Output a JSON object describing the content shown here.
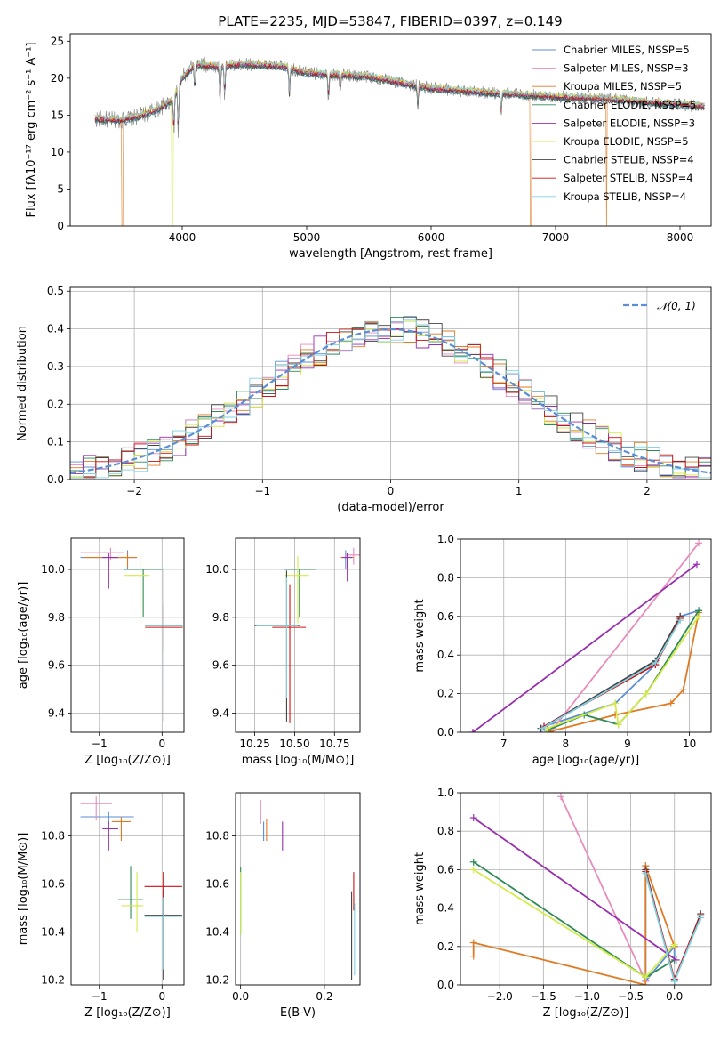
{
  "title": "PLATE=2235, MJD=53847, FIBERID=0397, z=0.149",
  "colors": {
    "Chabrier MILES": "#5b8ed6",
    "Salpeter MILES": "#e88bbd",
    "Kroupa MILES": "#e07b24",
    "Chabrier ELODIE": "#2e8b57",
    "Salpeter ELODIE": "#9a2fb0",
    "Kroupa ELODIE": "#d4ea4a",
    "Chabrier STELIB": "#444444",
    "Salpeter STELIB": "#cc1111",
    "Kroupa STELIB": "#7fd1e0",
    "spectrum": "#808080",
    "normal": "#5b8ed6"
  },
  "chart_data": [
    {
      "id": "spectrum",
      "type": "line",
      "xlabel": "wavelength [Angstrom, rest frame]",
      "ylabel": "Flux [fλ10⁻¹⁷ erg cm⁻² s⁻¹ A⁻¹]",
      "xlim": [
        3100,
        8250
      ],
      "ylim": [
        0,
        26
      ],
      "xticks": [
        "4000",
        "5000",
        "6000",
        "7000",
        "8000"
      ],
      "yticks": [
        "0",
        "5",
        "10",
        "15",
        "20",
        "25"
      ],
      "grid": false,
      "legend_position": "upper-right",
      "legend": [
        "Chabrier MILES, NSSP=5",
        "Salpeter MILES, NSSP=3",
        "Kroupa MILES, NSSP=5",
        "Chabrier ELODIE, NSSP=5",
        "Salpeter ELODIE, NSSP=3",
        "Kroupa ELODIE, NSSP=5",
        "Chabrier STELIB, NSSP=4",
        "Salpeter STELIB, NSSP=4",
        "Kroupa STELIB, NSSP=4"
      ],
      "continuum": [
        [
          3300,
          14.5
        ],
        [
          3500,
          14.3
        ],
        [
          3650,
          14.8
        ],
        [
          3800,
          15.8
        ],
        [
          3920,
          17.0
        ],
        [
          4000,
          20.0
        ],
        [
          4100,
          21.8
        ],
        [
          4300,
          21.6
        ],
        [
          4500,
          21.9
        ],
        [
          4800,
          21.6
        ],
        [
          5000,
          20.7
        ],
        [
          5500,
          20.2
        ],
        [
          6000,
          18.6
        ],
        [
          6500,
          18.0
        ],
        [
          7000,
          17.5
        ],
        [
          7500,
          17.1
        ],
        [
          8000,
          16.4
        ],
        [
          8200,
          16.2
        ]
      ],
      "absorption_lines": [
        [
          3933,
          4.5
        ],
        [
          3968,
          5.5
        ],
        [
          4101,
          3.0
        ],
        [
          4304,
          4.5
        ],
        [
          4341,
          3.5
        ],
        [
          4861,
          3.5
        ],
        [
          5175,
          3.0
        ],
        [
          5270,
          2.0
        ],
        [
          5893,
          2.5
        ],
        [
          6563,
          2.5
        ]
      ],
      "model_dropouts": [
        [
          3520,
          "Kroupa MILES"
        ],
        [
          3920,
          "Kroupa ELODIE"
        ],
        [
          6800,
          "Kroupa MILES"
        ],
        [
          7410,
          "Kroupa MILES"
        ]
      ]
    },
    {
      "id": "residual_hist",
      "type": "step",
      "xlabel": "(data-model)/error",
      "ylabel": "Normed distribution",
      "xlim": [
        -2.5,
        2.5
      ],
      "ylim": [
        0,
        0.51
      ],
      "xticks": [
        "−2",
        "−1",
        "0",
        "1",
        "2"
      ],
      "yticks": [
        "0.0",
        "0.1",
        "0.2",
        "0.3",
        "0.4",
        "0.5"
      ],
      "grid": true,
      "legend_label": "𝒩(0, 1)",
      "bins": {
        "start": -2.5,
        "width": 0.1,
        "count": 50
      },
      "normal": {
        "mean": 0,
        "sigma": 1
      }
    },
    {
      "id": "age_vs_Z",
      "type": "errorbar",
      "xlabel": "Z [log₁₀(Z/Z⊙)]",
      "ylabel": "age  [log₁₀(age/yr)]",
      "xlim": [
        -1.45,
        0.35
      ],
      "ylim": [
        9.32,
        10.13
      ],
      "xticks": [
        "−1",
        "0"
      ],
      "yticks": [
        "9.4",
        "9.6",
        "9.8",
        "10.0"
      ],
      "grid": true,
      "points": [
        {
          "model": "Chabrier MILES",
          "x": -0.55,
          "xl": 0.75,
          "xh": 0.15,
          "y": 10.05,
          "yl": 0.05,
          "yh": 0.03
        },
        {
          "model": "Salpeter MILES",
          "x": -0.82,
          "xl": 0.48,
          "xh": 0.22,
          "y": 10.07,
          "yl": 0.03,
          "yh": 0.02
        },
        {
          "model": "Kroupa MILES",
          "x": -0.55,
          "xl": 0.7,
          "xh": 0.15,
          "y": 10.05,
          "yl": 0.04,
          "yh": 0.02
        },
        {
          "model": "Chabrier ELODIE",
          "x": -0.3,
          "xl": 0.3,
          "xh": 0.3,
          "y": 10.0,
          "yl": 0.2,
          "yh": 0.0
        },
        {
          "model": "Salpeter ELODIE",
          "x": -0.85,
          "xl": 0.1,
          "xh": 0.15,
          "y": 10.05,
          "yl": 0.13,
          "yh": 0.02
        },
        {
          "model": "Kroupa ELODIE",
          "x": -0.35,
          "xl": 0.25,
          "xh": 0.15,
          "y": 9.975,
          "yl": 0.2,
          "yh": 0.1
        },
        {
          "model": "Chabrier STELIB",
          "x": 0.03,
          "xl": 0.3,
          "xh": 0.3,
          "y": 9.765,
          "yl": 0.4,
          "yh": 0.24
        },
        {
          "model": "Salpeter STELIB",
          "x": 0.03,
          "xl": 0.3,
          "xh": 0.3,
          "y": 9.758,
          "yl": 0.1,
          "yh": 0.1
        },
        {
          "model": "Kroupa STELIB",
          "x": 0.03,
          "xl": 0.3,
          "xh": 0.3,
          "y": 9.765,
          "yl": 0.3,
          "yh": 0.1
        }
      ]
    },
    {
      "id": "age_vs_mass",
      "type": "errorbar",
      "xlabel": "mass [log₁₀(M/M⊙)]",
      "ylabel": "",
      "xlim": [
        10.13,
        10.91
      ],
      "ylim": [
        9.32,
        10.13
      ],
      "xticks": [
        "10.25",
        "10.50",
        "10.75"
      ],
      "yticks": [
        "9.4",
        "9.6",
        "9.8",
        "10.0"
      ],
      "grid": true,
      "points": [
        {
          "model": "Chabrier MILES",
          "x": 10.82,
          "xl": 0.03,
          "xh": 0.04,
          "y": 10.05,
          "yl": 0.05,
          "yh": 0.03
        },
        {
          "model": "Salpeter MILES",
          "x": 10.87,
          "xl": 0.05,
          "xh": 0.04,
          "y": 10.06,
          "yl": 0.04,
          "yh": 0.03
        },
        {
          "model": "Kroupa MILES",
          "x": 10.83,
          "xl": 0.04,
          "xh": 0.04,
          "y": 10.05,
          "yl": 0.05,
          "yh": 0.02
        },
        {
          "model": "Chabrier ELODIE",
          "x": 10.53,
          "xl": 0.1,
          "xh": 0.1,
          "y": 10.0,
          "yl": 0.2,
          "yh": 0.0
        },
        {
          "model": "Salpeter ELODIE",
          "x": 10.83,
          "xl": 0.03,
          "xh": 0.03,
          "y": 10.05,
          "yl": 0.1,
          "yh": 0.02
        },
        {
          "model": "Kroupa ELODIE",
          "x": 10.52,
          "xl": 0.08,
          "xh": 0.07,
          "y": 9.975,
          "yl": 0.2,
          "yh": 0.08
        },
        {
          "model": "Chabrier STELIB",
          "x": 10.45,
          "xl": 0.2,
          "xh": 0.08,
          "y": 9.765,
          "yl": 0.4,
          "yh": 0.23
        },
        {
          "model": "Salpeter STELIB",
          "x": 10.47,
          "xl": 0.11,
          "xh": 0.1,
          "y": 9.758,
          "yl": 0.4,
          "yh": 0.18
        },
        {
          "model": "Kroupa STELIB",
          "x": 10.45,
          "xl": 0.19,
          "xh": 0.07,
          "y": 9.765,
          "yl": 0.3,
          "yh": 0.2
        }
      ]
    },
    {
      "id": "weight_vs_age",
      "type": "line",
      "xlabel": "age  [log₁₀(age/yr)]",
      "ylabel": "mass weight",
      "xlim": [
        6.3,
        10.35
      ],
      "ylim": [
        0,
        1
      ],
      "xticks": [
        "7",
        "8",
        "9",
        "10"
      ],
      "yticks": [
        "0.0",
        "0.2",
        "0.4",
        "0.6",
        "0.8",
        "1.0"
      ],
      "grid": true,
      "series": [
        {
          "model": "Chabrier MILES",
          "x": [
            7.65,
            8.8,
            9.45,
            9.85,
            10.15
          ],
          "y": [
            0.03,
            0.15,
            0.35,
            0.6,
            0.63
          ]
        },
        {
          "model": "Salpeter MILES",
          "x": [
            7.8,
            10.15
          ],
          "y": [
            0.02,
            0.98
          ]
        },
        {
          "model": "Kroupa MILES",
          "x": [
            7.7,
            8.8,
            9.7,
            9.9,
            10.15
          ],
          "y": [
            0.0,
            0.09,
            0.15,
            0.22,
            0.62
          ]
        },
        {
          "model": "Chabrier ELODIE",
          "x": [
            7.7,
            8.3,
            8.85,
            9.3,
            10.15
          ],
          "y": [
            0.01,
            0.09,
            0.04,
            0.2,
            0.63
          ]
        },
        {
          "model": "Salpeter ELODIE",
          "x": [
            6.5,
            10.12
          ],
          "y": [
            0.0,
            0.87
          ]
        },
        {
          "model": "Kroupa ELODIE",
          "x": [
            7.7,
            8.8,
            8.85,
            9.3,
            10.15
          ],
          "y": [
            0.02,
            0.15,
            0.04,
            0.2,
            0.6
          ]
        },
        {
          "model": "Chabrier STELIB",
          "x": [
            7.6,
            9.45,
            9.85
          ],
          "y": [
            0.02,
            0.37,
            0.6
          ]
        },
        {
          "model": "Salpeter STELIB",
          "x": [
            7.65,
            9.45,
            9.85
          ],
          "y": [
            0.03,
            0.35,
            0.59
          ]
        },
        {
          "model": "Kroupa STELIB",
          "x": [
            7.62,
            9.45,
            9.85
          ],
          "y": [
            0.02,
            0.36,
            0.58
          ]
        }
      ]
    },
    {
      "id": "mass_vs_Z",
      "type": "errorbar",
      "xlabel": "Z [log₁₀(Z/Z⊙)]",
      "ylabel": "mass [log₁₀(M/M⊙)]",
      "xlim": [
        -1.45,
        0.35
      ],
      "ylim": [
        10.18,
        10.98
      ],
      "xticks": [
        "−1",
        "0"
      ],
      "yticks": [
        "10.2",
        "10.4",
        "10.6",
        "10.8"
      ],
      "grid": true,
      "points": [
        {
          "model": "Chabrier MILES",
          "x": -0.85,
          "xl": 0.45,
          "xh": 0.4,
          "y": 10.88,
          "yl": 0.03,
          "yh": 0.02
        },
        {
          "model": "Salpeter MILES",
          "x": -1.05,
          "xl": 0.25,
          "xh": 0.25,
          "y": 10.935,
          "yl": 0.07,
          "yh": 0.03
        },
        {
          "model": "Kroupa MILES",
          "x": -0.65,
          "xl": 0.15,
          "xh": 0.15,
          "y": 10.86,
          "yl": 0.08,
          "yh": 0.02
        },
        {
          "model": "Chabrier ELODIE",
          "x": -0.5,
          "xl": 0.2,
          "xh": 0.2,
          "y": 10.535,
          "yl": 0.08,
          "yh": 0.14
        },
        {
          "model": "Salpeter ELODIE",
          "x": -0.85,
          "xl": 0.1,
          "xh": 0.15,
          "y": 10.83,
          "yl": 0.09,
          "yh": 0.03
        },
        {
          "model": "Kroupa ELODIE",
          "x": -0.4,
          "xl": 0.25,
          "xh": 0.1,
          "y": 10.51,
          "yl": 0.11,
          "yh": 0.14
        },
        {
          "model": "Chabrier STELIB",
          "x": 0.02,
          "xl": 0.3,
          "xh": 0.3,
          "y": 10.47,
          "yl": 0.27,
          "yh": 0.11
        },
        {
          "model": "Salpeter STELIB",
          "x": 0.02,
          "xl": 0.3,
          "xh": 0.3,
          "y": 10.59,
          "yl": 0.12,
          "yh": 0.06
        },
        {
          "model": "Kroupa STELIB",
          "x": 0.02,
          "xl": 0.3,
          "xh": 0.3,
          "y": 10.465,
          "yl": 0.22,
          "yh": 0.08
        }
      ]
    },
    {
      "id": "mass_vs_EBV",
      "type": "errorbar",
      "xlabel": "E(B-V)",
      "ylabel": "",
      "xlim": [
        -0.012,
        0.285
      ],
      "ylim": [
        10.18,
        10.98
      ],
      "xticks": [
        "0.0",
        "0.2"
      ],
      "yticks": [
        "10.2",
        "10.4",
        "10.6",
        "10.8"
      ],
      "grid": true,
      "points": [
        {
          "model": "Chabrier MILES",
          "x": 0.055,
          "xl": 0.0,
          "xh": 0.0,
          "y": 10.83,
          "yl": 0.05,
          "yh": 0.03
        },
        {
          "model": "Salpeter MILES",
          "x": 0.048,
          "xl": 0.0,
          "xh": 0.0,
          "y": 10.9,
          "yl": 0.05,
          "yh": 0.05
        },
        {
          "model": "Kroupa MILES",
          "x": 0.062,
          "xl": 0.0,
          "xh": 0.0,
          "y": 10.83,
          "yl": 0.05,
          "yh": 0.04
        },
        {
          "model": "Chabrier ELODIE",
          "x": 0.0,
          "xl": 0.0,
          "xh": 0.0,
          "y": 10.53,
          "yl": 0.14,
          "yh": 0.14
        },
        {
          "model": "Salpeter ELODIE",
          "x": 0.1,
          "xl": 0.0,
          "xh": 0.0,
          "y": 10.8,
          "yl": 0.06,
          "yh": 0.06
        },
        {
          "model": "Kroupa ELODIE",
          "x": 0.0,
          "xl": 0.0,
          "xh": 0.0,
          "y": 10.52,
          "yl": 0.13,
          "yh": 0.13
        },
        {
          "model": "Chabrier STELIB",
          "x": 0.265,
          "xl": 0.0,
          "xh": 0.0,
          "y": 10.4,
          "yl": 0.2,
          "yh": 0.17
        },
        {
          "model": "Salpeter STELIB",
          "x": 0.27,
          "xl": 0.0,
          "xh": 0.0,
          "y": 10.59,
          "yl": 0.1,
          "yh": 0.06
        },
        {
          "model": "Kroupa STELIB",
          "x": 0.272,
          "xl": 0.0,
          "xh": 0.0,
          "y": 10.4,
          "yl": 0.18,
          "yh": 0.12
        }
      ]
    },
    {
      "id": "weight_vs_Z",
      "type": "line",
      "xlabel": "Z [log₁₀(Z/Z⊙)]",
      "ylabel": "mass weight",
      "xlim": [
        -2.45,
        0.42
      ],
      "ylim": [
        0,
        1
      ],
      "xticks": [
        "−2.0",
        "−1.5",
        "−1.0",
        "−0.5",
        "0.0"
      ],
      "yticks": [
        "0.0",
        "0.2",
        "0.4",
        "0.6",
        "0.8",
        "1.0"
      ],
      "grid": true,
      "series": [
        {
          "model": "Chabrier MILES",
          "x": [
            -0.33,
            -0.33,
            0.0,
            0.0
          ],
          "y": [
            0.62,
            0.02,
            0.2,
            0.15
          ]
        },
        {
          "model": "Salpeter MILES",
          "x": [
            -1.3,
            -0.33
          ],
          "y": [
            0.98,
            0.02
          ]
        },
        {
          "model": "Kroupa MILES",
          "x": [
            -2.3,
            -2.3,
            -0.33,
            -0.33,
            0.0
          ],
          "y": [
            0.15,
            0.22,
            0.0,
            0.62,
            0.2
          ]
        },
        {
          "model": "Chabrier ELODIE",
          "x": [
            -2.3,
            -0.33,
            0.0
          ],
          "y": [
            0.64,
            0.04,
            0.13
          ]
        },
        {
          "model": "Salpeter ELODIE",
          "x": [
            -2.3,
            0.02
          ],
          "y": [
            0.87,
            0.13
          ]
        },
        {
          "model": "Kroupa ELODIE",
          "x": [
            -2.3,
            -0.33,
            0.0
          ],
          "y": [
            0.6,
            0.04,
            0.21
          ]
        },
        {
          "model": "Chabrier STELIB",
          "x": [
            -0.33,
            0.0,
            0.3
          ],
          "y": [
            0.6,
            0.02,
            0.37
          ]
        },
        {
          "model": "Salpeter STELIB",
          "x": [
            -0.33,
            0.0,
            0.3
          ],
          "y": [
            0.59,
            0.03,
            0.36
          ]
        },
        {
          "model": "Kroupa STELIB",
          "x": [
            -0.33,
            0.0,
            0.3
          ],
          "y": [
            0.58,
            0.02,
            0.35
          ]
        }
      ]
    }
  ]
}
